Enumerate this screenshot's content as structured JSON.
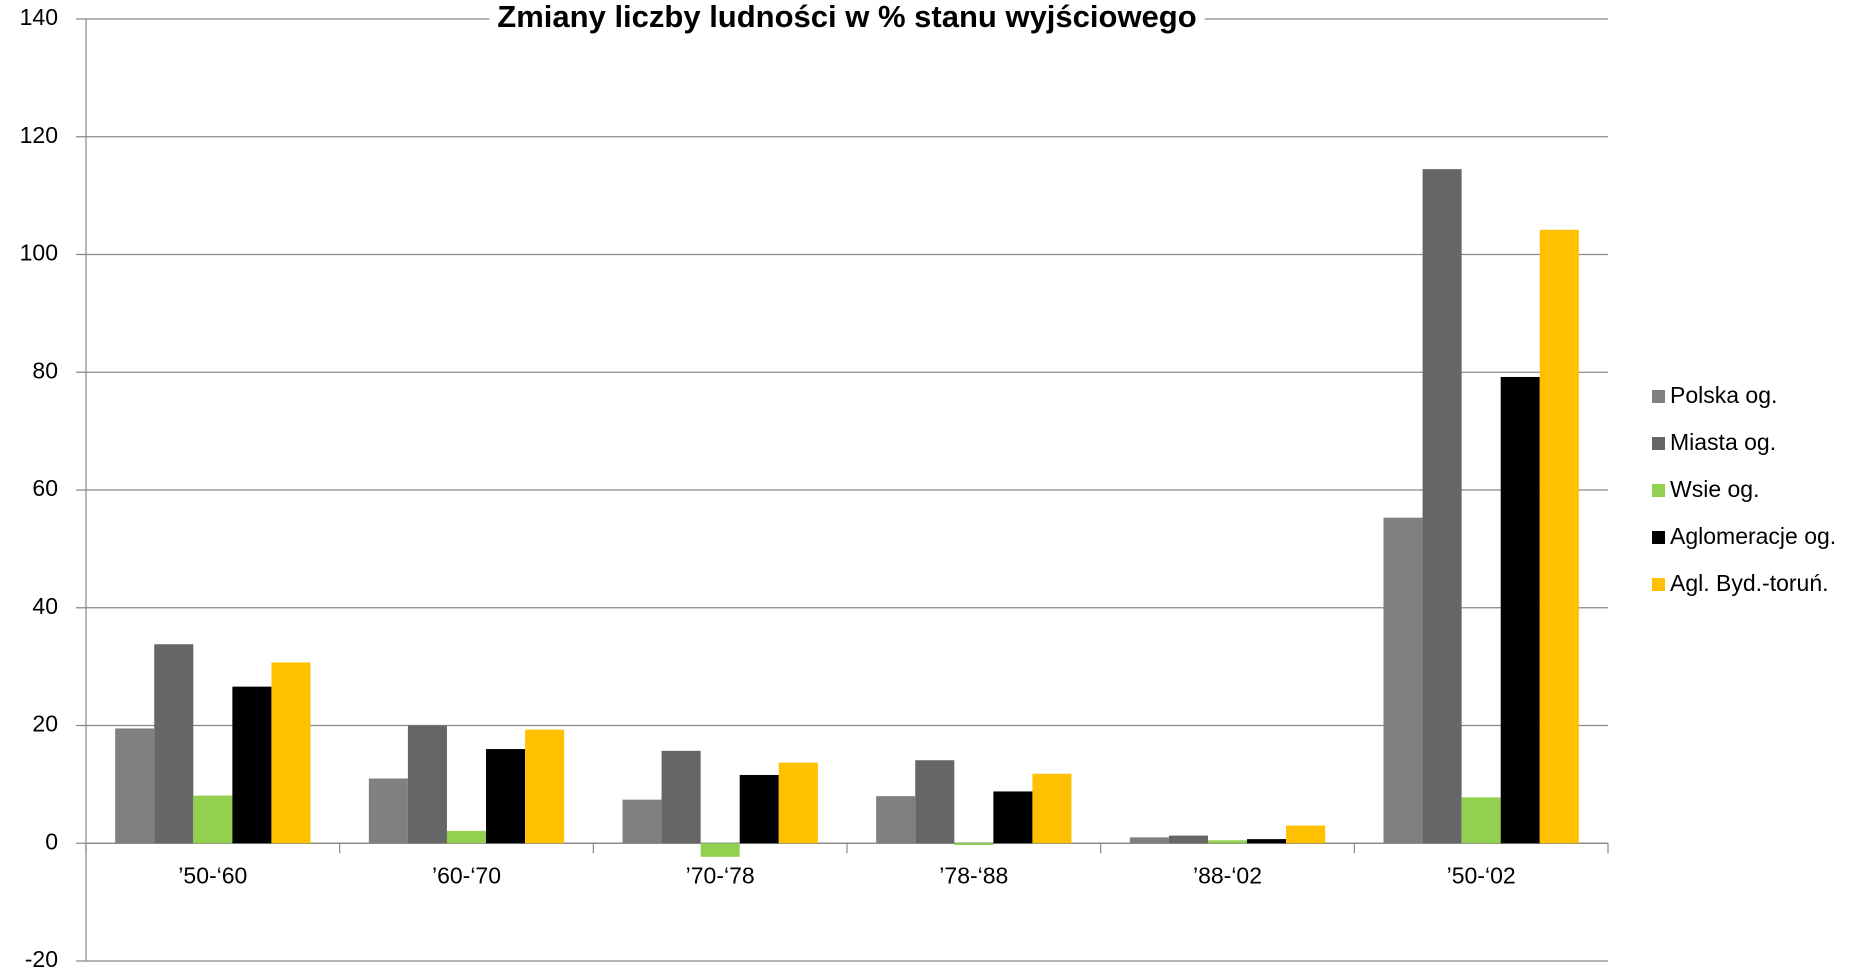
{
  "chart_data": {
    "type": "bar",
    "title": "Zmiany liczby ludności w % stanu wyjściowego",
    "categories": [
      "’50-‘60",
      "’60-‘70",
      "’70-‘78",
      "’78-‘88",
      "’88-‘02",
      "’50-‘02"
    ],
    "series": [
      {
        "name": "Polska og.",
        "color": "#808080",
        "values": [
          19.5,
          11.0,
          7.4,
          8.0,
          1.0,
          55.3
        ]
      },
      {
        "name": "Miasta og.",
        "color": "#666666",
        "values": [
          33.8,
          20.0,
          15.7,
          14.1,
          1.3,
          114.5
        ]
      },
      {
        "name": "Wsie og.",
        "color": "#92d050",
        "values": [
          8.1,
          2.1,
          -2.3,
          -0.3,
          0.5,
          7.8
        ]
      },
      {
        "name": "Aglomeracje og.",
        "color": "#000000",
        "values": [
          26.6,
          16.0,
          11.6,
          8.8,
          0.7,
          79.2
        ]
      },
      {
        "name": "Agl. Byd.-toruń.",
        "color": "#ffc000",
        "values": [
          30.7,
          19.3,
          13.7,
          11.8,
          3.0,
          104.2
        ]
      }
    ],
    "ylim": [
      -20,
      140
    ],
    "yticks": [
      -20,
      0,
      20,
      40,
      60,
      80,
      100,
      120,
      140
    ],
    "grid": true,
    "legend": "right"
  }
}
